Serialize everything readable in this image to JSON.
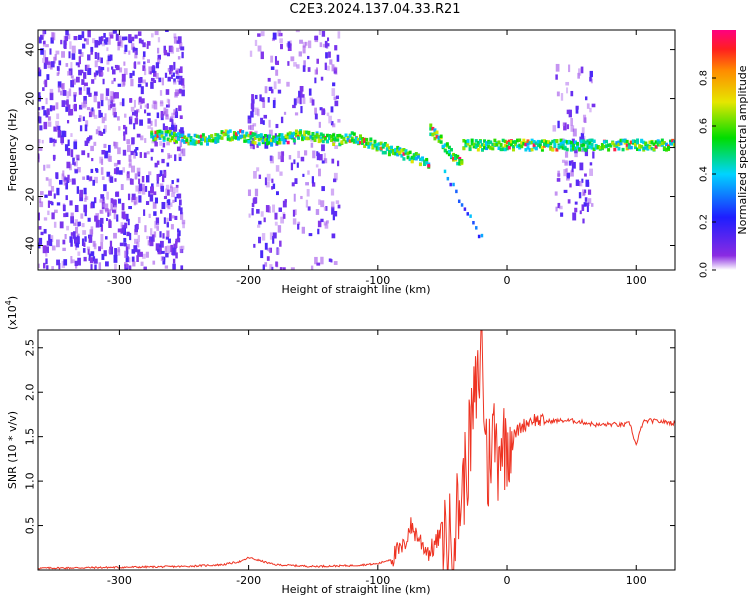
{
  "title": "C2E3.2024.137.04.33.R21",
  "colors": {
    "snr_line": "#ee3322",
    "axis": "#000000",
    "background": "#ffffff"
  },
  "chart_data": [
    {
      "type": "heatmap",
      "xlabel": "Height of straight line (km)",
      "ylabel": "Frequency (Hz)",
      "xlim": [
        -363,
        130
      ],
      "ylim": [
        -50,
        48
      ],
      "x_ticks": [
        -300,
        -200,
        -100,
        0,
        100
      ],
      "x_tick_labels": [
        "-300",
        "-200",
        "-100",
        "0",
        "100"
      ],
      "y_ticks": [
        -40,
        -20,
        0,
        20,
        40
      ],
      "y_tick_labels": [
        "-40",
        "-20",
        "0",
        "20",
        "40"
      ],
      "colorbar": {
        "label": "Normalized spectral amplitude",
        "range": [
          0,
          1
        ],
        "ticks": [
          0.0,
          0.2,
          0.4,
          0.6,
          0.8
        ],
        "tick_labels": [
          "0.0",
          "0.2",
          "0.4",
          "0.6",
          "0.8"
        ],
        "colormap": "rainbow (purple-blue-cyan-green-yellow-red-magenta)"
      },
      "grid": false
    },
    {
      "type": "line",
      "xlabel": "Height of straight line (km)",
      "ylabel": "SNR (10 * v/v)",
      "y_multiplier": "(x10",
      "y_multiplier_exp": "4",
      "xlim": [
        -363,
        130
      ],
      "ylim": [
        0,
        2.7
      ],
      "x_ticks": [
        -300,
        -200,
        -100,
        0,
        100
      ],
      "x_tick_labels": [
        "-300",
        "-200",
        "-100",
        "0",
        "100"
      ],
      "y_ticks": [
        0.5,
        1.0,
        1.5,
        2.0,
        2.5
      ],
      "y_tick_labels": [
        "0.5",
        "1.0",
        "1.5",
        "2.0",
        "2.5"
      ],
      "grid": false,
      "series": [
        {
          "x": [
            -363,
            -300,
            -250,
            -220,
            -205,
            -200,
            -180,
            -150,
            -120,
            -100,
            -90,
            -85,
            -80,
            -75,
            -70,
            -65,
            -60,
            -55,
            -50,
            -45,
            -40,
            -35,
            -30,
            -25,
            -22,
            -20,
            -18,
            -16,
            -15,
            -13,
            -10,
            -7,
            -5,
            -3,
            0,
            3,
            5,
            10,
            15,
            20,
            25,
            30,
            40,
            50,
            60,
            70,
            80,
            90,
            95,
            100,
            105,
            110,
            120,
            130
          ],
          "values": [
            0.02,
            0.03,
            0.04,
            0.06,
            0.1,
            0.14,
            0.06,
            0.04,
            0.05,
            0.07,
            0.12,
            0.2,
            0.25,
            0.5,
            0.4,
            0.28,
            0.2,
            0.3,
            0.45,
            0.32,
            0.55,
            0.85,
            1.3,
            1.9,
            2.1,
            2.65,
            1.95,
            1.45,
            1.0,
            1.4,
            1.55,
            1.3,
            1.55,
            1.4,
            1.45,
            1.55,
            1.5,
            1.6,
            1.65,
            1.7,
            1.68,
            1.67,
            1.68,
            1.68,
            1.66,
            1.63,
            1.64,
            1.63,
            1.65,
            1.4,
            1.66,
            1.68,
            1.67,
            1.65
          ]
        }
      ]
    }
  ]
}
